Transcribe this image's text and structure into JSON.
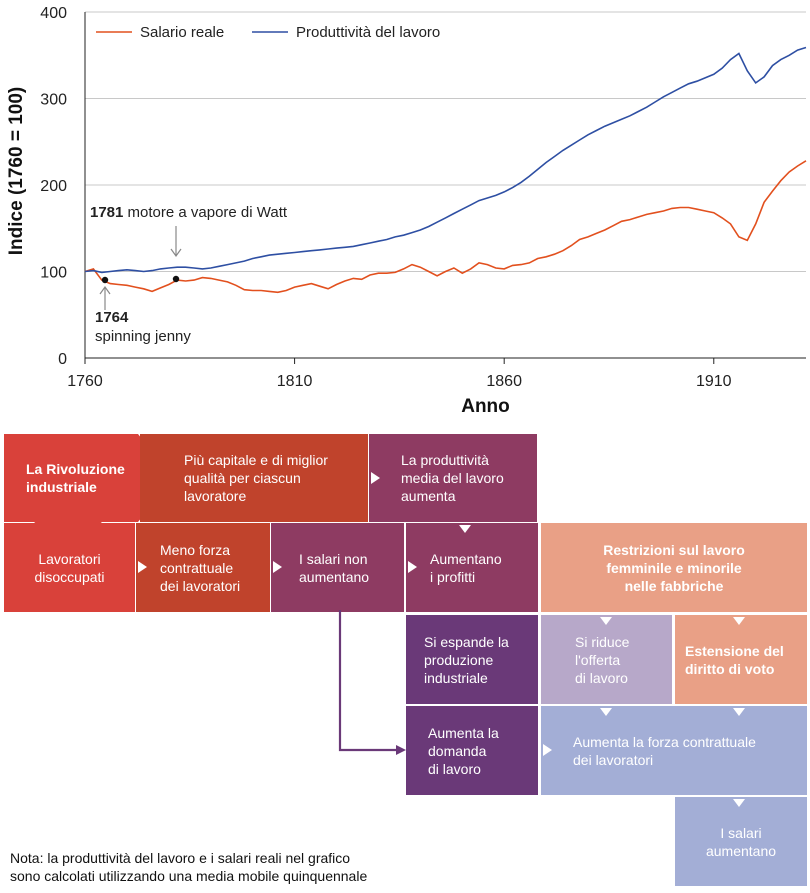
{
  "chart_data": {
    "type": "line",
    "ylabel": "Indice (1760 = 100)",
    "xlabel": "Anno",
    "xlim": [
      1760,
      1932
    ],
    "ylim": [
      0,
      400
    ],
    "x_ticks": [
      1760,
      1810,
      1860,
      1910
    ],
    "y_ticks": [
      0,
      100,
      200,
      300,
      400
    ],
    "grid": "horizontal",
    "legend_position": "top-left",
    "series": [
      {
        "name": "Salario reale",
        "color": "#e2501e",
        "x": [
          1760,
          1762,
          1764,
          1766,
          1768,
          1770,
          1772,
          1774,
          1776,
          1778,
          1780,
          1782,
          1784,
          1786,
          1788,
          1790,
          1792,
          1794,
          1796,
          1798,
          1800,
          1802,
          1804,
          1806,
          1808,
          1810,
          1812,
          1814,
          1816,
          1818,
          1820,
          1822,
          1824,
          1826,
          1828,
          1830,
          1832,
          1834,
          1836,
          1838,
          1840,
          1842,
          1844,
          1846,
          1848,
          1850,
          1852,
          1854,
          1856,
          1858,
          1860,
          1862,
          1864,
          1866,
          1868,
          1870,
          1872,
          1874,
          1876,
          1878,
          1880,
          1882,
          1884,
          1886,
          1888,
          1890,
          1892,
          1894,
          1896,
          1898,
          1900,
          1902,
          1904,
          1906,
          1908,
          1910,
          1912,
          1914,
          1916,
          1918,
          1920,
          1922,
          1924,
          1926,
          1928,
          1930,
          1932
        ],
        "y": [
          100,
          103,
          90,
          86,
          85,
          84,
          82,
          80,
          77,
          81,
          85,
          90,
          89,
          90,
          93,
          92,
          90,
          88,
          84,
          79,
          78,
          78,
          77,
          76,
          78,
          82,
          84,
          86,
          83,
          80,
          85,
          89,
          92,
          91,
          96,
          98,
          98,
          99,
          103,
          108,
          105,
          100,
          95,
          100,
          104,
          98,
          103,
          110,
          108,
          104,
          103,
          107,
          108,
          110,
          115,
          117,
          120,
          124,
          130,
          137,
          140,
          144,
          148,
          153,
          158,
          160,
          163,
          166,
          168,
          170,
          173,
          174,
          174,
          172,
          170,
          168,
          162,
          155,
          140,
          136,
          155,
          180,
          193,
          205,
          215,
          222,
          228
        ]
      },
      {
        "name": "Produttività del lavoro",
        "color": "#2e4fa3",
        "x": [
          1760,
          1762,
          1764,
          1766,
          1768,
          1770,
          1772,
          1774,
          1776,
          1778,
          1780,
          1782,
          1784,
          1786,
          1788,
          1790,
          1792,
          1794,
          1796,
          1798,
          1800,
          1802,
          1804,
          1806,
          1808,
          1810,
          1812,
          1814,
          1816,
          1818,
          1820,
          1822,
          1824,
          1826,
          1828,
          1830,
          1832,
          1834,
          1836,
          1838,
          1840,
          1842,
          1844,
          1846,
          1848,
          1850,
          1852,
          1854,
          1856,
          1858,
          1860,
          1862,
          1864,
          1866,
          1868,
          1870,
          1872,
          1874,
          1876,
          1878,
          1880,
          1882,
          1884,
          1886,
          1888,
          1890,
          1892,
          1894,
          1896,
          1898,
          1900,
          1902,
          1904,
          1906,
          1908,
          1910,
          1912,
          1914,
          1916,
          1918,
          1920,
          1922,
          1924,
          1926,
          1928,
          1930,
          1932
        ],
        "y": [
          100,
          101,
          99,
          100,
          101,
          102,
          101,
          100,
          101,
          103,
          104,
          105,
          105,
          104,
          103,
          104,
          106,
          108,
          110,
          112,
          115,
          117,
          119,
          120,
          121,
          122,
          123,
          124,
          125,
          126,
          127,
          128,
          129,
          131,
          133,
          135,
          137,
          140,
          142,
          145,
          148,
          152,
          157,
          162,
          167,
          172,
          177,
          182,
          185,
          188,
          192,
          197,
          203,
          210,
          218,
          226,
          233,
          240,
          246,
          252,
          258,
          263,
          268,
          272,
          276,
          280,
          285,
          290,
          296,
          302,
          307,
          312,
          317,
          320,
          324,
          328,
          335,
          345,
          352,
          332,
          318,
          325,
          338,
          345,
          350,
          356,
          359
        ]
      }
    ],
    "annotations": [
      {
        "year": "1781",
        "text": "motore a vapore di Watt"
      },
      {
        "year": "1764",
        "text": "spinning jenny"
      }
    ]
  },
  "colors": {
    "red": "#d9413a",
    "dark_red": "#c0432c",
    "plum": "#8e3b62",
    "purple": "#6a3978",
    "salmon": "#e9a086",
    "lavender": "#b7a8c9",
    "periwinkle": "#a3aed6",
    "arrow": "#6a3978"
  },
  "diagram": {
    "boxes": {
      "rivoluzione": "La Rivoluzione\nindustriale",
      "piu_capitale": "Più capitale e di miglior\nqualità per ciascun\nlavoratore",
      "produttivita": "La produttività\nmedia del lavoro\naumenta",
      "disoccupati": "Lavoratori\ndisoccupati",
      "meno_forza": "Meno forza\ncontrattuale\ndei lavoratori",
      "salari_non": "I salari non\naumentano",
      "profitti": "Aumentano\ni profitti",
      "restrizioni": "Restrizioni sul lavoro\nfemminile e minorile\nnelle fabbriche",
      "espande": "Si espande la\nproduzione\nindustriale",
      "riduce": "Si riduce\nl'offerta\ndi lavoro",
      "voto": "Estensione del\ndiritto di voto",
      "domanda": "Aumenta la\ndomanda\ndi lavoro",
      "forza": "Aumenta la forza contrattuale\ndei lavoratori",
      "salari_aumentano": "I salari\naumentano"
    },
    "note": "Nota: la produttività del lavoro e i salari reali nel grafico\nsono calcolati utilizzando una media mobile quinquennale"
  }
}
